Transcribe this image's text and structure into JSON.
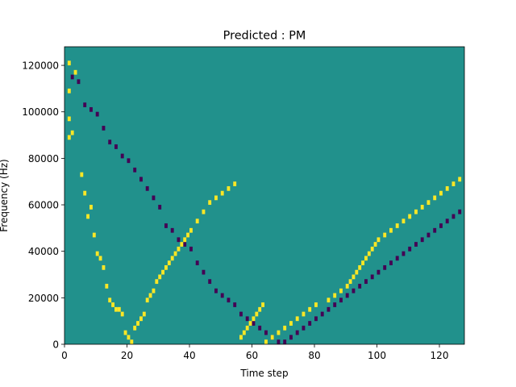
{
  "chart_data": {
    "type": "heatmap",
    "title": "Predicted : PM",
    "xlabel": "Time step",
    "ylabel": "Frequency (Hz)",
    "xlim": [
      0,
      128
    ],
    "ylim": [
      0,
      128000
    ],
    "x_ticks": [
      0,
      20,
      40,
      60,
      80,
      100,
      120
    ],
    "y_ticks": [
      0,
      20000,
      40000,
      60000,
      80000,
      100000,
      120000
    ],
    "grid": false,
    "legend": "none",
    "n_time_steps": 128,
    "n_freq_bins": 64,
    "bin_hz": 2000,
    "colors": {
      "background": "#21918c",
      "high": "#fde725",
      "low": "#440154"
    },
    "background_value": 0,
    "high_cells": [
      [
        1,
        121000
      ],
      [
        1,
        109000
      ],
      [
        1,
        97000
      ],
      [
        1,
        89000
      ],
      [
        2,
        91000
      ],
      [
        3,
        117000
      ],
      [
        5,
        73000
      ],
      [
        6,
        65000
      ],
      [
        7,
        55000
      ],
      [
        8,
        59000
      ],
      [
        9,
        47000
      ],
      [
        10,
        39000
      ],
      [
        11,
        37000
      ],
      [
        12,
        33000
      ],
      [
        13,
        25000
      ],
      [
        14,
        19000
      ],
      [
        15,
        17000
      ],
      [
        16,
        15000
      ],
      [
        17,
        15000
      ],
      [
        18,
        13000
      ],
      [
        19,
        5000
      ],
      [
        20,
        3000
      ],
      [
        21,
        1000
      ],
      [
        22,
        7000
      ],
      [
        23,
        9000
      ],
      [
        24,
        11000
      ],
      [
        25,
        13000
      ],
      [
        26,
        19000
      ],
      [
        27,
        21000
      ],
      [
        28,
        23000
      ],
      [
        29,
        27000
      ],
      [
        30,
        29000
      ],
      [
        31,
        31000
      ],
      [
        32,
        33000
      ],
      [
        33,
        35000
      ],
      [
        34,
        37000
      ],
      [
        35,
        39000
      ],
      [
        36,
        41000
      ],
      [
        37,
        43000
      ],
      [
        38,
        45000
      ],
      [
        39,
        47000
      ],
      [
        40,
        49000
      ],
      [
        42,
        53000
      ],
      [
        44,
        57000
      ],
      [
        46,
        61000
      ],
      [
        48,
        63000
      ],
      [
        50,
        65000
      ],
      [
        52,
        67000
      ],
      [
        54,
        69000
      ],
      [
        56,
        3000
      ],
      [
        57,
        5000
      ],
      [
        58,
        7000
      ],
      [
        59,
        9000
      ],
      [
        60,
        11000
      ],
      [
        61,
        13000
      ],
      [
        62,
        15000
      ],
      [
        63,
        17000
      ],
      [
        64,
        1000
      ],
      [
        66,
        3000
      ],
      [
        68,
        5000
      ],
      [
        70,
        7000
      ],
      [
        72,
        9000
      ],
      [
        74,
        11000
      ],
      [
        76,
        13000
      ],
      [
        78,
        15000
      ],
      [
        80,
        17000
      ],
      [
        84,
        19000
      ],
      [
        86,
        21000
      ],
      [
        88,
        23000
      ],
      [
        90,
        25000
      ],
      [
        91,
        27000
      ],
      [
        92,
        29000
      ],
      [
        93,
        31000
      ],
      [
        94,
        33000
      ],
      [
        95,
        35000
      ],
      [
        96,
        37000
      ],
      [
        97,
        39000
      ],
      [
        98,
        41000
      ],
      [
        99,
        43000
      ],
      [
        100,
        45000
      ],
      [
        102,
        47000
      ],
      [
        104,
        49000
      ],
      [
        106,
        51000
      ],
      [
        108,
        53000
      ],
      [
        110,
        55000
      ],
      [
        112,
        57000
      ],
      [
        114,
        59000
      ],
      [
        116,
        61000
      ],
      [
        118,
        63000
      ],
      [
        120,
        65000
      ],
      [
        122,
        67000
      ],
      [
        124,
        69000
      ],
      [
        126,
        71000
      ]
    ],
    "low_cells": [
      [
        2,
        115000
      ],
      [
        4,
        113000
      ],
      [
        6,
        103000
      ],
      [
        8,
        101000
      ],
      [
        10,
        99000
      ],
      [
        12,
        93000
      ],
      [
        14,
        87000
      ],
      [
        16,
        85000
      ],
      [
        18,
        81000
      ],
      [
        20,
        79000
      ],
      [
        22,
        75000
      ],
      [
        24,
        71000
      ],
      [
        26,
        67000
      ],
      [
        28,
        63000
      ],
      [
        30,
        59000
      ],
      [
        32,
        51000
      ],
      [
        34,
        49000
      ],
      [
        36,
        45000
      ],
      [
        38,
        43000
      ],
      [
        40,
        41000
      ],
      [
        42,
        35000
      ],
      [
        44,
        31000
      ],
      [
        46,
        27000
      ],
      [
        48,
        23000
      ],
      [
        50,
        21000
      ],
      [
        52,
        19000
      ],
      [
        54,
        17000
      ],
      [
        56,
        13000
      ],
      [
        58,
        11000
      ],
      [
        60,
        9000
      ],
      [
        62,
        7000
      ],
      [
        64,
        5000
      ],
      [
        66,
        3000
      ],
      [
        68,
        1000
      ],
      [
        70,
        1000
      ],
      [
        72,
        3000
      ],
      [
        74,
        5000
      ],
      [
        76,
        7000
      ],
      [
        78,
        9000
      ],
      [
        80,
        11000
      ],
      [
        82,
        13000
      ],
      [
        84,
        15000
      ],
      [
        86,
        17000
      ],
      [
        88,
        19000
      ],
      [
        90,
        21000
      ],
      [
        92,
        23000
      ],
      [
        94,
        25000
      ],
      [
        96,
        27000
      ],
      [
        98,
        29000
      ],
      [
        100,
        31000
      ],
      [
        102,
        33000
      ],
      [
        104,
        35000
      ],
      [
        106,
        37000
      ],
      [
        108,
        39000
      ],
      [
        110,
        41000
      ],
      [
        112,
        43000
      ],
      [
        114,
        45000
      ],
      [
        116,
        47000
      ],
      [
        118,
        49000
      ],
      [
        120,
        51000
      ],
      [
        122,
        53000
      ],
      [
        124,
        55000
      ],
      [
        126,
        57000
      ]
    ]
  }
}
